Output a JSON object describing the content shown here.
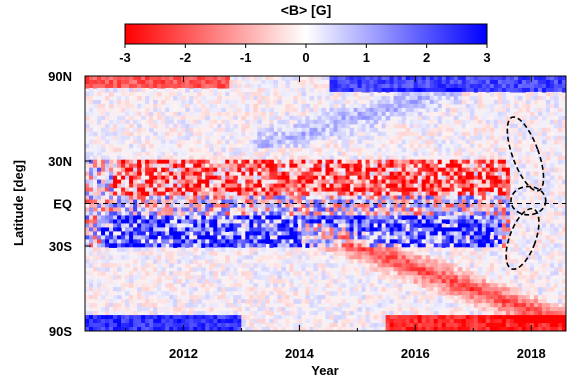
{
  "chart_data": {
    "type": "heatmap",
    "colorbar": {
      "title": "<B> [G]",
      "ticks": [
        "-3",
        "-2",
        "-1",
        "0",
        "1",
        "2",
        "3"
      ],
      "range": [
        -3,
        3
      ],
      "colors": {
        "negative": "#ff0000",
        "zero": "#ffffff",
        "positive": "#0000ff"
      }
    },
    "xlabel": "Year",
    "ylabel": "Latitude [deg]",
    "xlim": [
      2010.3,
      2018.6
    ],
    "ylim": [
      -90,
      90
    ],
    "x_ticks": [
      {
        "value": 2012,
        "label": "2012"
      },
      {
        "value": 2014,
        "label": "2014"
      },
      {
        "value": 2016,
        "label": "2016"
      },
      {
        "value": 2018,
        "label": "2018"
      }
    ],
    "y_ticks": [
      {
        "value": 90,
        "label": "90N"
      },
      {
        "value": 30,
        "label": "30N"
      },
      {
        "value": 0,
        "label": "EQ"
      },
      {
        "value": -30,
        "label": "30S"
      },
      {
        "value": -90,
        "label": "90S"
      }
    ],
    "annotations": {
      "equator_line": "dashed",
      "ellipses": [
        {
          "x": 2017.9,
          "lat": 35,
          "width_years": 0.45,
          "height_deg": 55,
          "angle_deg": -20
        },
        {
          "x": 2017.95,
          "lat": 2,
          "width_years": 0.6,
          "height_deg": 20,
          "angle_deg": 0
        },
        {
          "x": 2017.85,
          "lat": -25,
          "width_years": 0.45,
          "height_deg": 45,
          "angle_deg": 20
        }
      ]
    },
    "bands": [
      {
        "desc": "north polar field",
        "x0": 2010.3,
        "x1": 2012.8,
        "lat0": 82,
        "lat1": 90,
        "value": -2.0
      },
      {
        "desc": "north polar field",
        "x0": 2014.5,
        "x1": 2018.6,
        "lat0": 80,
        "lat1": 90,
        "value": 2.2
      },
      {
        "desc": "south polar field",
        "x0": 2010.3,
        "x1": 2013.0,
        "lat0": -90,
        "lat1": -80,
        "value": 2.4
      },
      {
        "desc": "south polar field",
        "x0": 2015.5,
        "x1": 2018.6,
        "lat0": -90,
        "lat1": -78,
        "value": -2.6
      },
      {
        "desc": "northern activity band",
        "x0": 2010.8,
        "x1": 2017.6,
        "lat0": 5,
        "lat1": 30,
        "value": -1.6
      },
      {
        "desc": "southern activity band",
        "x0": 2010.6,
        "x1": 2017.5,
        "lat0": -30,
        "lat1": -8,
        "value": 1.8
      },
      {
        "desc": "southern poleward surge",
        "x0": 2014.0,
        "x1": 2018.6,
        "lat0": -85,
        "lat1": -15,
        "value": -2.2
      },
      {
        "desc": "northern poleward surge",
        "x0": 2013.2,
        "x1": 2016.8,
        "lat0": 40,
        "lat1": 82,
        "value": 0.9
      }
    ]
  }
}
